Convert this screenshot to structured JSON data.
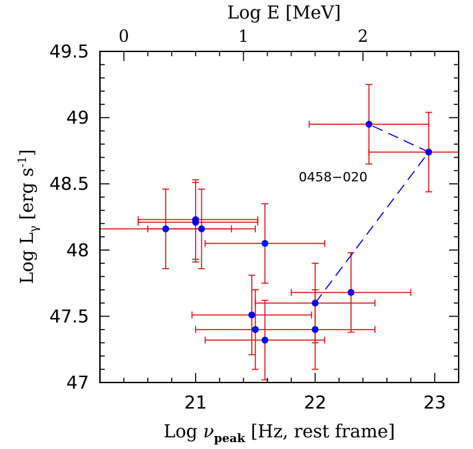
{
  "chart_data": {
    "type": "scatter",
    "xlim": [
      20.2,
      23.2
    ],
    "ylim": [
      47,
      49.5
    ],
    "top_xlim": [
      -0.2,
      2.8
    ],
    "grid": false,
    "legend": "none",
    "x_ticks": [
      21,
      22,
      23
    ],
    "y_ticks": [
      47,
      47.5,
      48,
      48.5,
      49,
      49.5
    ],
    "top_ticks": [
      0,
      1,
      2
    ],
    "x_tick_labels": [
      "21",
      "22",
      "23"
    ],
    "y_tick_labels": [
      "47",
      "47.5",
      "48",
      "48.5",
      "49",
      "49.5"
    ],
    "top_tick_labels": [
      "0",
      "1",
      "2"
    ],
    "xlabel": {
      "prefix": "Log ",
      "symbol": "ν",
      "sub": "peak",
      "suffix": " [Hz, rest frame]"
    },
    "ylabel": {
      "prefix": "Log L",
      "sub": "γ",
      "mid": " [erg s",
      "sup": "-1",
      "suffix": "]"
    },
    "top_xlabel": "Log E [MeV]",
    "colors": {
      "points": "#0000ee",
      "errorbars": "#dd1111",
      "line": "#0000ee",
      "axes": "#000000"
    },
    "points": [
      {
        "x": 20.75,
        "y": 48.16,
        "xerr": [
          0.55,
          0.55
        ],
        "yerr": [
          0.3,
          0.3
        ]
      },
      {
        "x": 21.0,
        "y": 48.23,
        "xerr": [
          0.48,
          0.52
        ],
        "yerr": [
          0.3,
          0.3
        ]
      },
      {
        "x": 21.0,
        "y": 48.21,
        "xerr": [
          0.48,
          0.52
        ],
        "yerr": [
          0.3,
          0.3
        ]
      },
      {
        "x": 21.05,
        "y": 48.16,
        "xerr": [
          0.45,
          0.45
        ],
        "yerr": [
          0.3,
          0.3
        ]
      },
      {
        "x": 21.58,
        "y": 48.05,
        "xerr": [
          0.5,
          0.5
        ],
        "yerr": [
          0.3,
          0.3
        ]
      },
      {
        "x": 21.47,
        "y": 47.51,
        "xerr": [
          0.5,
          0.5
        ],
        "yerr": [
          0.3,
          0.3
        ]
      },
      {
        "x": 21.5,
        "y": 47.4,
        "xerr": [
          0.5,
          0.5
        ],
        "yerr": [
          0.3,
          0.3
        ]
      },
      {
        "x": 21.58,
        "y": 47.32,
        "xerr": [
          0.5,
          0.5
        ],
        "yerr": [
          0.3,
          0.3
        ]
      },
      {
        "x": 22.0,
        "y": 47.6,
        "xerr": [
          0.5,
          0.5
        ],
        "yerr": [
          0.3,
          0.3
        ]
      },
      {
        "x": 22.0,
        "y": 47.4,
        "xerr": [
          0.5,
          0.5
        ],
        "yerr": [
          0.3,
          0.3
        ]
      },
      {
        "x": 22.3,
        "y": 47.68,
        "xerr": [
          0.5,
          0.5
        ],
        "yerr": [
          0.3,
          0.3
        ]
      },
      {
        "x": 22.45,
        "y": 48.95,
        "xerr": [
          0.5,
          0.5
        ],
        "yerr": [
          0.3,
          0.3
        ]
      },
      {
        "x": 22.95,
        "y": 48.74,
        "xerr": [
          0.5,
          0.5
        ],
        "yerr": [
          0.3,
          0.3
        ]
      }
    ],
    "dashed_path": [
      {
        "x": 22.0,
        "y": 47.6
      },
      {
        "x": 22.95,
        "y": 48.74
      },
      {
        "x": 22.45,
        "y": 48.95
      }
    ],
    "annotations": [
      {
        "text": "0458−020",
        "x": 22.15,
        "y": 48.52
      }
    ]
  }
}
